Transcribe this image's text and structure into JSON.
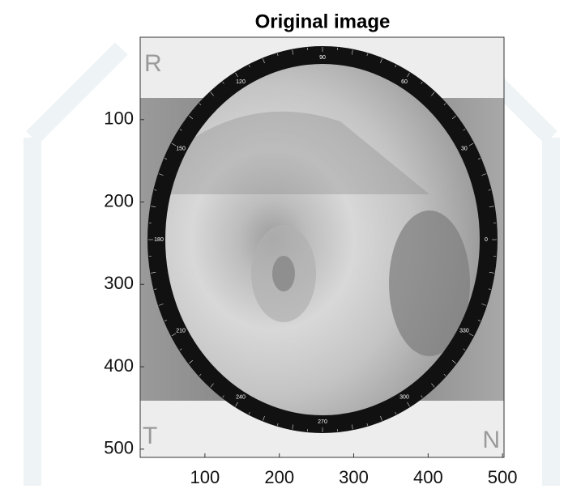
{
  "chart_data": {
    "type": "image",
    "title": "Original image",
    "xlim": [
      13,
      502
    ],
    "ylim": [
      0,
      510
    ],
    "y_reversed": true,
    "xticks": [
      100,
      200,
      300,
      400,
      500
    ],
    "yticks": [
      100,
      200,
      300,
      400,
      500
    ],
    "corner_labels": [
      "R",
      "T",
      "N"
    ],
    "ring_ticks": [
      0,
      30,
      60,
      90,
      120,
      150,
      180,
      210,
      240,
      270,
      300,
      330
    ]
  }
}
